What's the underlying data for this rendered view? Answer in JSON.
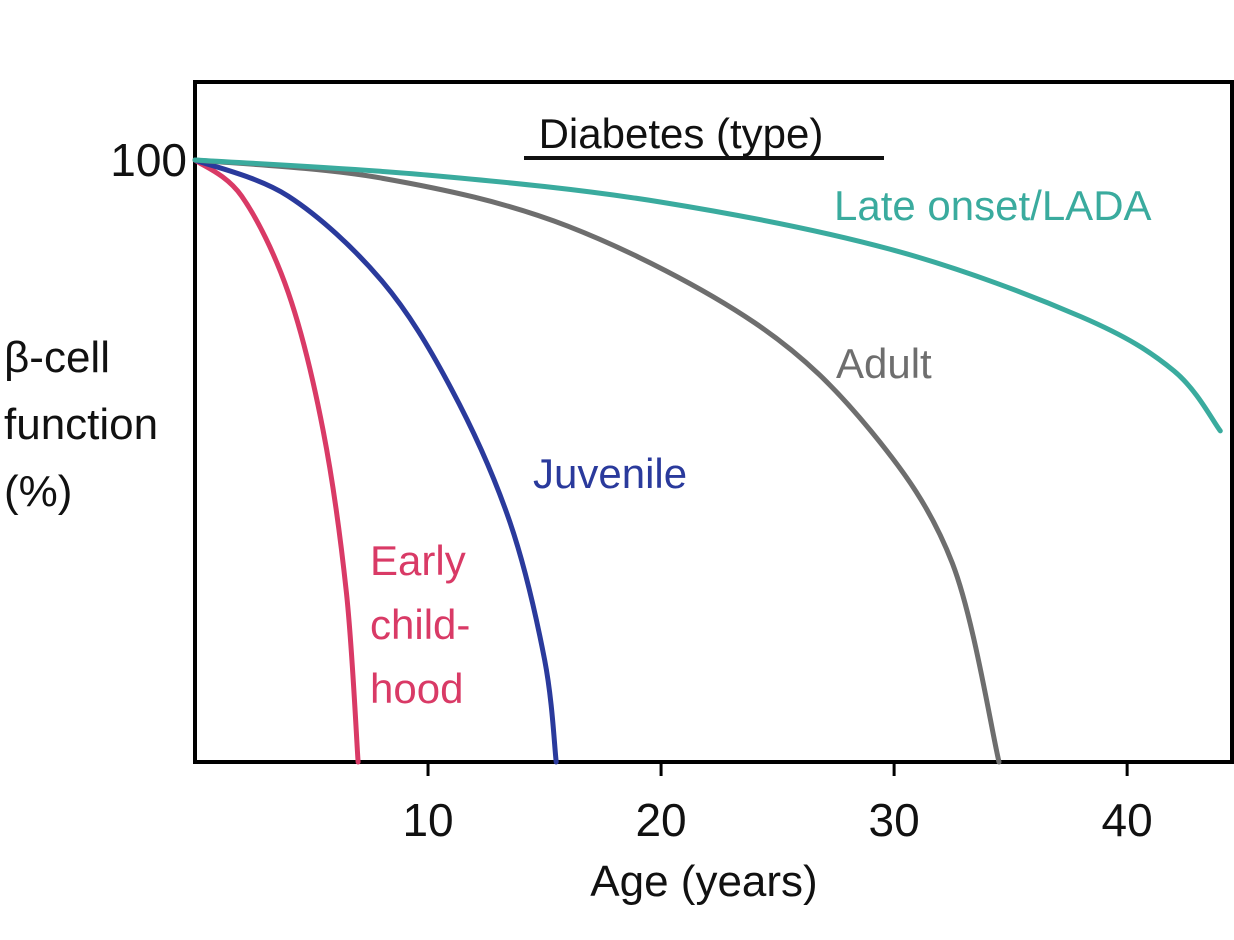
{
  "chart_data": {
    "type": "line",
    "title": "",
    "xlabel": "Age (years)",
    "ylabel_lines": [
      "β-cell",
      "function",
      "(%)"
    ],
    "xlim": [
      0,
      44.5
    ],
    "ylim": [
      0,
      100
    ],
    "xticks": [
      10,
      20,
      30,
      40
    ],
    "yticks": [
      100
    ],
    "grid": false,
    "legend_title": "Diabetes (type)",
    "series": [
      {
        "name": "Early childhood",
        "label_lines": [
          "Early",
          "child-",
          "hood"
        ],
        "color": "#d93a66",
        "x": [
          0,
          2,
          4,
          5.5,
          6.5,
          7
        ],
        "y": [
          100,
          94,
          78,
          55,
          28,
          0
        ]
      },
      {
        "name": "Juvenile",
        "label_lines": [
          "Juvenile"
        ],
        "color": "#2a3a9c",
        "x": [
          0,
          4,
          8,
          11,
          13.5,
          15,
          15.5
        ],
        "y": [
          100,
          94,
          80,
          62,
          40,
          17,
          0
        ]
      },
      {
        "name": "Adult",
        "label_lines": [
          "Adult"
        ],
        "color": "#6e6e6e",
        "x": [
          0,
          8,
          16,
          24,
          29,
          32.5,
          34.5
        ],
        "y": [
          100,
          97,
          89,
          73,
          55,
          33,
          0
        ]
      },
      {
        "name": "Late onset/LADA",
        "label_lines": [
          "Late onset/LADA"
        ],
        "color": "#3aab9e",
        "x": [
          0,
          10,
          20,
          30,
          38,
          42,
          44
        ],
        "y": [
          100,
          97.5,
          93,
          85,
          74,
          65,
          55
        ]
      }
    ]
  }
}
